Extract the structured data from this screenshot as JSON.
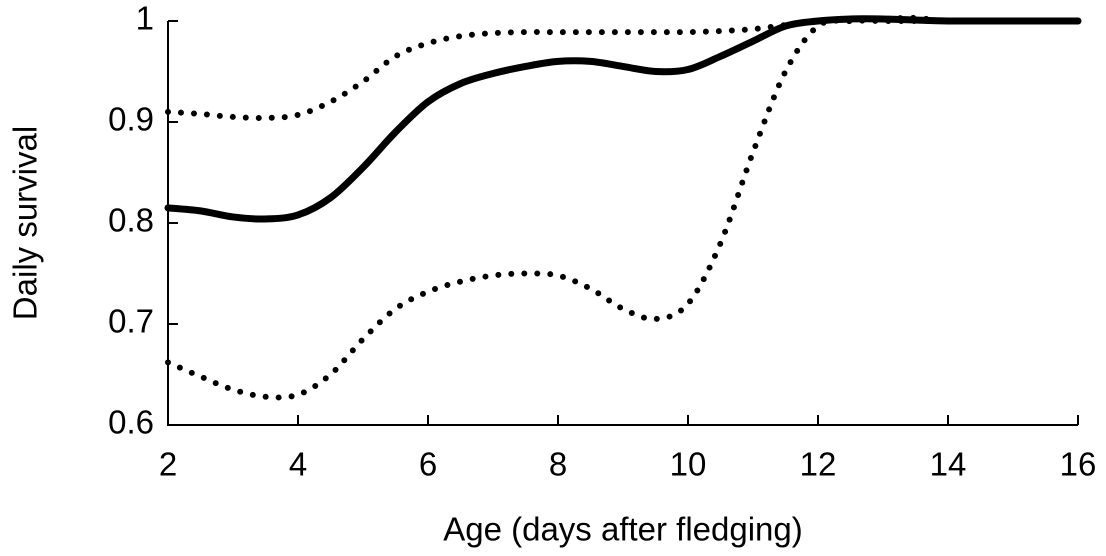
{
  "chart_data": {
    "type": "line",
    "x_label": "Age (days after fledging)",
    "y_label": "Daily survival",
    "x": [
      2,
      2.5,
      3,
      3.5,
      4,
      4.5,
      5,
      5.5,
      6,
      6.5,
      7,
      7.5,
      8,
      8.5,
      9,
      9.5,
      10,
      10.5,
      11,
      11.5,
      12,
      12.5,
      13,
      13.5,
      14,
      15,
      16
    ],
    "series": [
      {
        "color": "#000000",
        "dash": "solid",
        "values": [
          0.815,
          0.812,
          0.806,
          0.804,
          0.808,
          0.825,
          0.855,
          0.89,
          0.92,
          0.938,
          0.948,
          0.955,
          0.96,
          0.96,
          0.955,
          0.95,
          0.952,
          0.965,
          0.98,
          0.995,
          1.0,
          1.002,
          1.002,
          1.001,
          1.0,
          1.0,
          1.0
        ]
      },
      {
        "color": "#000000",
        "dash": "dotted",
        "values": [
          0.91,
          0.908,
          0.905,
          0.904,
          0.907,
          0.92,
          0.94,
          0.965,
          0.978,
          0.985,
          0.988,
          0.989,
          0.989,
          0.989,
          0.989,
          0.989,
          0.989,
          0.99,
          0.992,
          0.996,
          1.0,
          1.001,
          1.002,
          1.003,
          1.0,
          1.0,
          1.0
        ]
      },
      {
        "color": "#000000",
        "dash": "dotted",
        "values": [
          0.662,
          0.648,
          0.635,
          0.628,
          0.63,
          0.65,
          0.685,
          0.715,
          0.732,
          0.742,
          0.748,
          0.75,
          0.748,
          0.735,
          0.715,
          0.705,
          0.72,
          0.78,
          0.87,
          0.95,
          0.995,
          1.0,
          1.0,
          1.0,
          1.0,
          1.0,
          1.0
        ]
      }
    ],
    "xlim": [
      2,
      16
    ],
    "xticks": [
      2,
      4,
      6,
      8,
      10,
      12,
      14,
      16
    ],
    "ylim": [
      0.6,
      1
    ],
    "yticks": [
      0.6,
      0.7,
      0.8,
      0.9,
      1
    ],
    "grid": false
  }
}
